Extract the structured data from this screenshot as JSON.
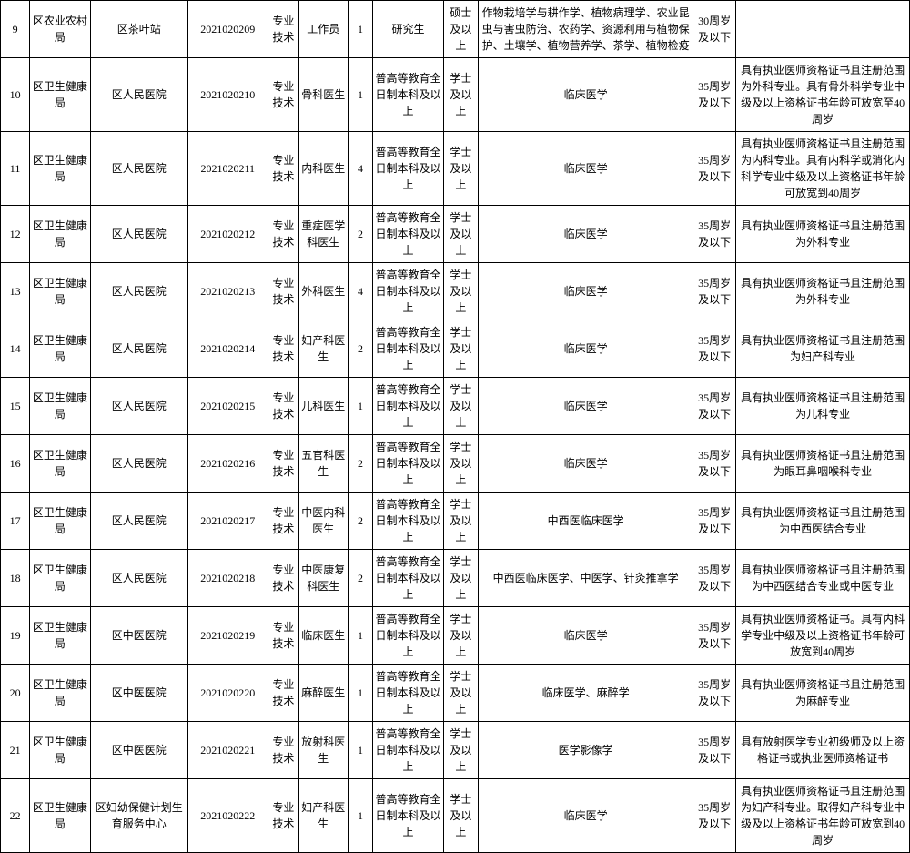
{
  "rows": [
    {
      "idx": "9",
      "dept": "区农业农村局",
      "unit": "区茶叶站",
      "code": "2021020209",
      "type": "专业技术",
      "post": "工作员",
      "num": "1",
      "edu": "研究生",
      "deg": "硕士及以上",
      "major": "作物栽培学与耕作学、植物病理学、农业昆虫与害虫防治、农药学、资源利用与植物保护、土壤学、植物营养学、茶学、植物检疫",
      "age": "30周岁及以下",
      "other": ""
    },
    {
      "idx": "10",
      "dept": "区卫生健康局",
      "unit": "区人民医院",
      "code": "2021020210",
      "type": "专业技术",
      "post": "骨科医生",
      "num": "1",
      "edu": "普高等教育全日制本科及以上",
      "deg": "学士及以上",
      "major": "临床医学",
      "age": "35周岁及以下",
      "other": "具有执业医师资格证书且注册范围为外科专业。具有骨外科学专业中级及以上资格证书年龄可放宽至40周岁"
    },
    {
      "idx": "11",
      "dept": "区卫生健康局",
      "unit": "区人民医院",
      "code": "2021020211",
      "type": "专业技术",
      "post": "内科医生",
      "num": "4",
      "edu": "普高等教育全日制本科及以上",
      "deg": "学士及以上",
      "major": "临床医学",
      "age": "35周岁及以下",
      "other": "具有执业医师资格证书且注册范围为内科专业。具有内科学或消化内科学专业中级及以上资格证书年龄可放宽到40周岁"
    },
    {
      "idx": "12",
      "dept": "区卫生健康局",
      "unit": "区人民医院",
      "code": "2021020212",
      "type": "专业技术",
      "post": "重症医学科医生",
      "num": "2",
      "edu": "普高等教育全日制本科及以上",
      "deg": "学士及以上",
      "major": "临床医学",
      "age": "35周岁及以下",
      "other": "具有执业医师资格证书且注册范围为外科专业"
    },
    {
      "idx": "13",
      "dept": "区卫生健康局",
      "unit": "区人民医院",
      "code": "2021020213",
      "type": "专业技术",
      "post": "外科医生",
      "num": "4",
      "edu": "普高等教育全日制本科及以上",
      "deg": "学士及以上",
      "major": "临床医学",
      "age": "35周岁及以下",
      "other": "具有执业医师资格证书且注册范围为外科专业"
    },
    {
      "idx": "14",
      "dept": "区卫生健康局",
      "unit": "区人民医院",
      "code": "2021020214",
      "type": "专业技术",
      "post": "妇产科医生",
      "num": "2",
      "edu": "普高等教育全日制本科及以上",
      "deg": "学士及以上",
      "major": "临床医学",
      "age": "35周岁及以下",
      "other": "具有执业医师资格证书且注册范围为妇产科专业"
    },
    {
      "idx": "15",
      "dept": "区卫生健康局",
      "unit": "区人民医院",
      "code": "2021020215",
      "type": "专业技术",
      "post": "儿科医生",
      "num": "1",
      "edu": "普高等教育全日制本科及以上",
      "deg": "学士及以上",
      "major": "临床医学",
      "age": "35周岁及以下",
      "other": "具有执业医师资格证书且注册范围为儿科专业"
    },
    {
      "idx": "16",
      "dept": "区卫生健康局",
      "unit": "区人民医院",
      "code": "2021020216",
      "type": "专业技术",
      "post": "五官科医生",
      "num": "2",
      "edu": "普高等教育全日制本科及以上",
      "deg": "学士及以上",
      "major": "临床医学",
      "age": "35周岁及以下",
      "other": "具有执业医师资格证书且注册范围为眼耳鼻咽喉科专业"
    },
    {
      "idx": "17",
      "dept": "区卫生健康局",
      "unit": "区人民医院",
      "code": "2021020217",
      "type": "专业技术",
      "post": "中医内科医生",
      "num": "2",
      "edu": "普高等教育全日制本科及以上",
      "deg": "学士及以上",
      "major": "中西医临床医学",
      "age": "35周岁及以下",
      "other": "具有执业医师资格证书且注册范围为中西医结合专业"
    },
    {
      "idx": "18",
      "dept": "区卫生健康局",
      "unit": "区人民医院",
      "code": "2021020218",
      "type": "专业技术",
      "post": "中医康复科医生",
      "num": "2",
      "edu": "普高等教育全日制本科及以上",
      "deg": "学士及以上",
      "major": "中西医临床医学、中医学、针灸推拿学",
      "age": "35周岁及以下",
      "other": "具有执业医师资格证书且注册范围为中西医结合专业或中医专业"
    },
    {
      "idx": "19",
      "dept": "区卫生健康局",
      "unit": "区中医医院",
      "code": "2021020219",
      "type": "专业技术",
      "post": "临床医生",
      "num": "1",
      "edu": "普高等教育全日制本科及以上",
      "deg": "学士及以上",
      "major": "临床医学",
      "age": "35周岁及以下",
      "other": "具有执业医师资格证书。具有内科学专业中级及以上资格证书年龄可放宽到40周岁"
    },
    {
      "idx": "20",
      "dept": "区卫生健康局",
      "unit": "区中医医院",
      "code": "2021020220",
      "type": "专业技术",
      "post": "麻醉医生",
      "num": "1",
      "edu": "普高等教育全日制本科及以上",
      "deg": "学士及以上",
      "major": "临床医学、麻醉学",
      "age": "35周岁及以下",
      "other": "具有执业医师资格证书且注册范围为麻醉专业"
    },
    {
      "idx": "21",
      "dept": "区卫生健康局",
      "unit": "区中医医院",
      "code": "2021020221",
      "type": "专业技术",
      "post": "放射科医生",
      "num": "1",
      "edu": "普高等教育全日制本科及以上",
      "deg": "学士及以上",
      "major": "医学影像学",
      "age": "35周岁及以下",
      "other": "具有放射医学专业初级师及以上资格证书或执业医师资格证书"
    },
    {
      "idx": "22",
      "dept": "区卫生健康局",
      "unit": "区妇幼保健计划生育服务中心",
      "code": "2021020222",
      "type": "专业技术",
      "post": "妇产科医生",
      "num": "1",
      "edu": "普高等教育全日制本科及以上",
      "deg": "学士及以上",
      "major": "临床医学",
      "age": "35周岁及以下",
      "other": "具有执业医师资格证书且注册范围为妇产科专业。取得妇产科专业中级及以上资格证书年龄可放宽到40周岁"
    }
  ]
}
